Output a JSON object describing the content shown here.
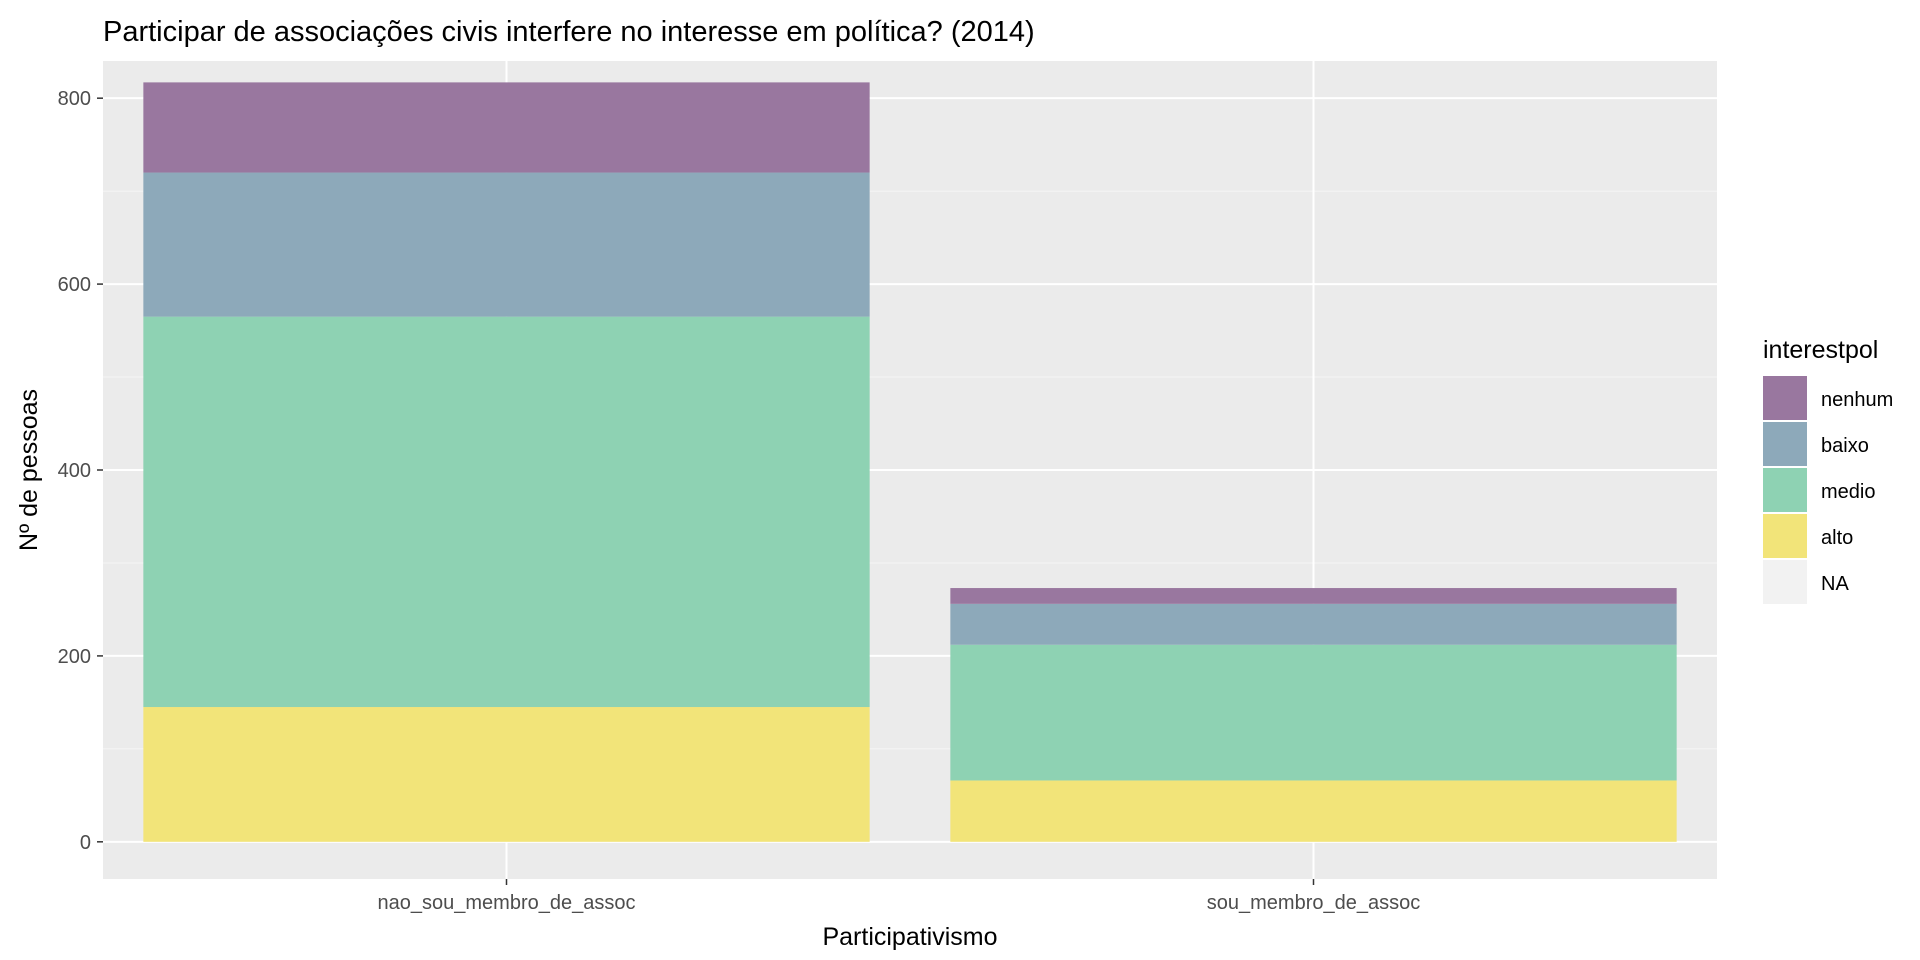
{
  "chart_data": {
    "type": "bar",
    "stacked": true,
    "title": "Participar de associações civis interfere no interesse em política? (2014)",
    "xlabel": "Participativismo",
    "ylabel": "Nº de pessoas",
    "categories": [
      "nao_sou_membro_de_assoc",
      "sou_membro_de_assoc"
    ],
    "series": [
      {
        "name": "alto",
        "values": [
          145,
          66
        ],
        "color": "#F2E479"
      },
      {
        "name": "medio",
        "values": [
          420,
          146
        ],
        "color": "#8ED2B3"
      },
      {
        "name": "baixo",
        "values": [
          155,
          44
        ],
        "color": "#8DA9BA"
      },
      {
        "name": "nenhum",
        "values": [
          97,
          17
        ],
        "color": "#99779F"
      },
      {
        "name": "NA",
        "values": [
          0,
          0
        ],
        "color": "#F2F2F2"
      }
    ],
    "ylim": [
      -40,
      840
    ],
    "yticks": [
      0,
      200,
      400,
      600,
      800
    ],
    "grid": true,
    "legend": {
      "title": "interestpol",
      "placement": "right",
      "order": [
        "nenhum",
        "baixo",
        "medio",
        "alto",
        "NA"
      ]
    },
    "colors": {
      "panel": "#EBEBEB",
      "grid_major": "#FFFFFF",
      "grid_minor": "#F5F5F5",
      "tick_text": "#4D4D4D"
    }
  }
}
